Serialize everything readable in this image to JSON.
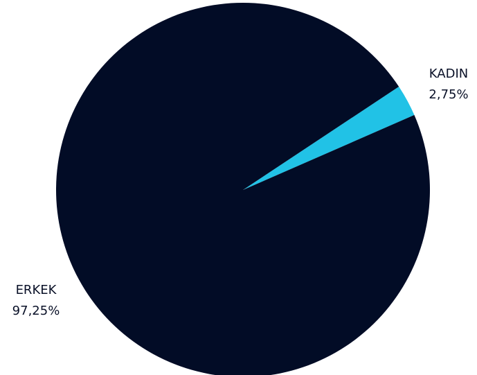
{
  "chart_data": {
    "type": "pie",
    "slices": [
      {
        "label": "ERKEK",
        "value": 97.25,
        "value_text": "97,25%",
        "color": "#020c26"
      },
      {
        "label": "KADIN",
        "value": 2.75,
        "value_text": "2,75%",
        "color": "#21c2e6"
      }
    ]
  }
}
